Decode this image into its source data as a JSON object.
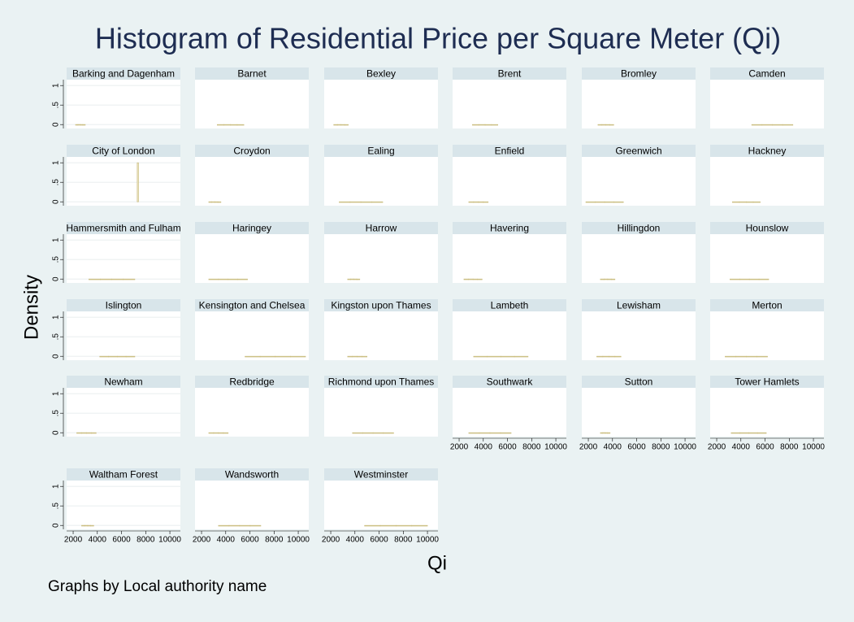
{
  "title": "Histogram of Residential Price per Square Meter (Qi)",
  "x_label": "Qi",
  "y_label": "Density",
  "note": "Graphs by Local authority name",
  "chart_data": [
    {
      "type": "histogram",
      "title": "Barking and Dagenham",
      "color": "#c9bb7c",
      "bins": [
        2200,
        2400,
        2600,
        2800,
        3000
      ],
      "values": [
        0.0012,
        0.0019,
        0.0011,
        0.0008
      ],
      "xlim": [
        1460,
        10870
      ],
      "ylim": [
        -0.1,
        1.15
      ],
      "yticks": [
        0,
        {
          "value": 0.5,
          "label": ".5"
        },
        1
      ]
    },
    {
      "type": "histogram",
      "title": "Barnet",
      "color": "#c9bb7c",
      "bins": [
        3300,
        3850,
        4400,
        4950,
        5500
      ],
      "values": [
        0.0006,
        0.0008,
        0.0003,
        0.0001
      ],
      "xlim": [
        1460,
        10870
      ],
      "ylim": [
        -0.1,
        1.15
      ]
    },
    {
      "type": "histogram",
      "title": "Bexley",
      "color": "#c9bb7c",
      "bins": [
        2250,
        2550,
        2850,
        3150,
        3450
      ],
      "values": [
        0.0009,
        0.0013,
        0.0008,
        0.0003
      ],
      "xlim": [
        1460,
        10870
      ],
      "ylim": [
        -0.1,
        1.15
      ]
    },
    {
      "type": "histogram",
      "title": "Brent",
      "color": "#c9bb7c",
      "bins": [
        3100,
        3625,
        4150,
        4675,
        5200
      ],
      "values": [
        0.0005,
        0.0008,
        0.0004,
        0.0002
      ],
      "xlim": [
        1460,
        10870
      ],
      "ylim": [
        -0.1,
        1.15
      ]
    },
    {
      "type": "histogram",
      "title": "Bromley",
      "color": "#c9bb7c",
      "bins": [
        2800,
        3125,
        3450,
        3775,
        4100
      ],
      "values": [
        0.0008,
        0.0012,
        0.0008,
        0.0003
      ],
      "xlim": [
        1460,
        10870
      ],
      "ylim": [
        -0.1,
        1.15
      ]
    },
    {
      "type": "histogram",
      "title": "Camden",
      "color": "#c9bb7c",
      "bins": [
        4900,
        5750,
        6600,
        7450,
        8300
      ],
      "values": [
        0.0003,
        0.0005,
        0.0003,
        0.0001
      ],
      "xlim": [
        1460,
        10870
      ],
      "ylim": [
        -0.1,
        1.15
      ]
    },
    {
      "type": "histogram",
      "title": "City of London",
      "color": "#c9bb7c",
      "bins": [
        7300,
        7400
      ],
      "values": [
        1
      ],
      "xlim": [
        1460,
        10870
      ],
      "ylim": [
        -0.1,
        1.15
      ],
      "yticks": [
        0,
        {
          "value": 0.5,
          "label": ".5"
        },
        1
      ]
    },
    {
      "type": "histogram",
      "title": "Croydon",
      "color": "#c9bb7c",
      "bins": [
        2600,
        2850,
        3100,
        3350,
        3600
      ],
      "values": [
        0.0012,
        0.0014,
        0.001,
        0.0004
      ],
      "xlim": [
        1460,
        10870
      ],
      "ylim": [
        -0.1,
        1.15
      ]
    },
    {
      "type": "histogram",
      "title": "Ealing",
      "color": "#c9bb7c",
      "bins": [
        2700,
        3600,
        4500,
        5400,
        6300
      ],
      "values": [
        0.0003,
        0.0005,
        0.0002,
        0.0001
      ],
      "xlim": [
        1460,
        10870
      ],
      "ylim": [
        -0.1,
        1.15
      ]
    },
    {
      "type": "histogram",
      "title": "Enfield",
      "color": "#c9bb7c",
      "bins": [
        2800,
        3200,
        3600,
        4000,
        4400
      ],
      "values": [
        0.0007,
        0.0009,
        0.0006,
        0.0003
      ],
      "xlim": [
        1460,
        10870
      ],
      "ylim": [
        -0.1,
        1.15
      ]
    },
    {
      "type": "histogram",
      "title": "Greenwich",
      "color": "#c9bb7c",
      "bins": [
        1800,
        2575,
        3350,
        4125,
        4900
      ],
      "values": [
        0.0002,
        0.0005,
        0.0004,
        0.0002
      ],
      "xlim": [
        1460,
        10870
      ],
      "ylim": [
        -0.1,
        1.15
      ]
    },
    {
      "type": "histogram",
      "title": "Hackney",
      "color": "#c9bb7c",
      "bins": [
        3300,
        3875,
        4450,
        5025,
        5600
      ],
      "values": [
        0.0005,
        0.0007,
        0.0003,
        0.0002
      ],
      "xlim": [
        1460,
        10870
      ],
      "ylim": [
        -0.1,
        1.15
      ]
    },
    {
      "type": "histogram",
      "title": "Hammersmith and Fulham",
      "color": "#c9bb7c",
      "bins": [
        3300,
        4250,
        5200,
        6150,
        7100
      ],
      "values": [
        0.0001,
        0.0003,
        0.0004,
        0.0003
      ],
      "xlim": [
        1460,
        10870
      ],
      "ylim": [
        -0.1,
        1.15
      ],
      "yticks": [
        0,
        {
          "value": 0.5,
          "label": ".5"
        },
        1
      ]
    },
    {
      "type": "histogram",
      "title": "Haringey",
      "color": "#c9bb7c",
      "bins": [
        2600,
        3400,
        4200,
        5000,
        5800
      ],
      "values": [
        0.0004,
        0.0005,
        0.0002,
        0.0001
      ],
      "xlim": [
        1460,
        10870
      ],
      "ylim": [
        -0.1,
        1.15
      ]
    },
    {
      "type": "histogram",
      "title": "Harrow",
      "color": "#c9bb7c",
      "bins": [
        3400,
        3650,
        3900,
        4150,
        4400
      ],
      "values": [
        0.0009,
        0.0016,
        0.0011,
        0.0004
      ],
      "xlim": [
        1460,
        10870
      ],
      "ylim": [
        -0.1,
        1.15
      ]
    },
    {
      "type": "histogram",
      "title": "Havering",
      "color": "#c9bb7c",
      "bins": [
        2400,
        2775,
        3150,
        3525,
        3900
      ],
      "values": [
        0.0009,
        0.0011,
        0.0005,
        0.0002
      ],
      "xlim": [
        1460,
        10870
      ],
      "ylim": [
        -0.1,
        1.15
      ]
    },
    {
      "type": "histogram",
      "title": "Hillingdon",
      "color": "#c9bb7c",
      "bins": [
        3000,
        3300,
        3600,
        3900,
        4200
      ],
      "values": [
        0.0007,
        0.0013,
        0.001,
        0.0003
      ],
      "xlim": [
        1460,
        10870
      ],
      "ylim": [
        -0.1,
        1.15
      ]
    },
    {
      "type": "histogram",
      "title": "Hounslow",
      "color": "#c9bb7c",
      "bins": [
        3100,
        3900,
        4700,
        5500,
        6300
      ],
      "values": [
        0.0004,
        0.0005,
        0.0002,
        0.0001
      ],
      "xlim": [
        1460,
        10870
      ],
      "ylim": [
        -0.1,
        1.15
      ]
    },
    {
      "type": "histogram",
      "title": "Islington",
      "color": "#c9bb7c",
      "bins": [
        4200,
        4925,
        5650,
        6375,
        7100
      ],
      "values": [
        0.0003,
        0.0005,
        0.0004,
        0.0002
      ],
      "xlim": [
        1460,
        10870
      ],
      "ylim": [
        -0.1,
        1.15
      ],
      "yticks": [
        0,
        {
          "value": 0.5,
          "label": ".5"
        },
        1
      ]
    },
    {
      "type": "histogram",
      "title": "Kensington and Chelsea",
      "color": "#c9bb7c",
      "bins": [
        5600,
        6850,
        8100,
        9350,
        10600
      ],
      "values": [
        0.0001,
        0.0003,
        0.0003,
        0.0001
      ],
      "xlim": [
        1460,
        10870
      ],
      "ylim": [
        -0.1,
        1.15
      ]
    },
    {
      "type": "histogram",
      "title": "Kingston upon Thames",
      "color": "#c9bb7c",
      "bins": [
        3400,
        3800,
        4200,
        4600,
        5000
      ],
      "values": [
        0.0006,
        0.001,
        0.0006,
        0.0003
      ],
      "xlim": [
        1460,
        10870
      ],
      "ylim": [
        -0.1,
        1.15
      ]
    },
    {
      "type": "histogram",
      "title": "Lambeth",
      "color": "#c9bb7c",
      "bins": [
        3200,
        4325,
        5450,
        6575,
        7700
      ],
      "values": [
        0.0003,
        0.0004,
        0.0001,
        0.0001
      ],
      "xlim": [
        1460,
        10870
      ],
      "ylim": [
        -0.1,
        1.15
      ]
    },
    {
      "type": "histogram",
      "title": "Lewisham",
      "color": "#c9bb7c",
      "bins": [
        2700,
        3200,
        3700,
        4200,
        4700
      ],
      "values": [
        0.0005,
        0.0008,
        0.0005,
        0.0002
      ],
      "xlim": [
        1460,
        10870
      ],
      "ylim": [
        -0.1,
        1.15
      ]
    },
    {
      "type": "histogram",
      "title": "Merton",
      "color": "#c9bb7c",
      "bins": [
        2700,
        3575,
        4450,
        5325,
        6200
      ],
      "values": [
        0.0002,
        0.0005,
        0.0003,
        0.0001
      ],
      "xlim": [
        1460,
        10870
      ],
      "ylim": [
        -0.1,
        1.15
      ]
    },
    {
      "type": "histogram",
      "title": "Newham",
      "color": "#c9bb7c",
      "bins": [
        2300,
        2700,
        3100,
        3500,
        3900
      ],
      "values": [
        0.0007,
        0.0009,
        0.0006,
        0.0003
      ],
      "xlim": [
        1460,
        10870
      ],
      "ylim": [
        -0.1,
        1.15
      ],
      "yticks": [
        0,
        {
          "value": 0.5,
          "label": ".5"
        },
        1
      ]
    },
    {
      "type": "histogram",
      "title": "Redbridge",
      "color": "#c9bb7c",
      "bins": [
        2600,
        3000,
        3400,
        3800,
        4200
      ],
      "values": [
        0.0007,
        0.001,
        0.0005,
        0.0002
      ],
      "xlim": [
        1460,
        10870
      ],
      "ylim": [
        -0.1,
        1.15
      ]
    },
    {
      "type": "histogram",
      "title": "Richmond upon Thames",
      "color": "#c9bb7c",
      "bins": [
        3800,
        4650,
        5500,
        6350,
        7200
      ],
      "values": [
        0.0003,
        0.0004,
        0.0003,
        0.0002
      ],
      "xlim": [
        1460,
        10870
      ],
      "ylim": [
        -0.1,
        1.15
      ]
    },
    {
      "type": "histogram",
      "title": "Southwark",
      "color": "#c9bb7c",
      "bins": [
        2800,
        3675,
        4550,
        5425,
        6300
      ],
      "values": [
        0.0002,
        0.0005,
        0.0003,
        0.0001
      ],
      "xlim": [
        1460,
        10870
      ],
      "ylim": [
        -0.1,
        1.15
      ],
      "xticks": [
        2000,
        4000,
        6000,
        8000,
        10000
      ]
    },
    {
      "type": "histogram",
      "title": "Sutton",
      "color": "#c9bb7c",
      "bins": [
        3000,
        3200,
        3400,
        3600,
        3800
      ],
      "values": [
        0.001,
        0.0019,
        0.0014,
        0.0007
      ],
      "xlim": [
        1460,
        10870
      ],
      "ylim": [
        -0.1,
        1.15
      ],
      "xticks": [
        2000,
        4000,
        6000,
        8000,
        10000
      ]
    },
    {
      "type": "histogram",
      "title": "Tower Hamlets",
      "color": "#c9bb7c",
      "bins": [
        3200,
        3925,
        4650,
        5375,
        6100
      ],
      "values": [
        0.0003,
        0.0006,
        0.0004,
        0.0001
      ],
      "xlim": [
        1460,
        10870
      ],
      "ylim": [
        -0.1,
        1.15
      ],
      "xticks": [
        2000,
        4000,
        6000,
        8000,
        10000
      ]
    },
    {
      "type": "histogram",
      "title": "Waltham Forest",
      "color": "#c9bb7c",
      "bins": [
        2700,
        2950,
        3200,
        3450,
        3700
      ],
      "values": [
        0.001,
        0.0015,
        0.0011,
        0.0004
      ],
      "xlim": [
        1460,
        10870
      ],
      "ylim": [
        -0.1,
        1.15
      ],
      "yticks": [
        0,
        {
          "value": 0.5,
          "label": ".5"
        },
        1
      ],
      "xticks": [
        2000,
        4000,
        6000,
        8000,
        10000
      ]
    },
    {
      "type": "histogram",
      "title": "Wandsworth",
      "color": "#c9bb7c",
      "bins": [
        3400,
        4275,
        5150,
        6025,
        6900
      ],
      "values": [
        0.0002,
        0.0005,
        0.0003,
        0.0001
      ],
      "xlim": [
        1460,
        10870
      ],
      "ylim": [
        -0.1,
        1.15
      ],
      "xticks": [
        2000,
        4000,
        6000,
        8000,
        10000
      ]
    },
    {
      "type": "histogram",
      "title": "Westminster",
      "color": "#c9bb7c",
      "bins": [
        4800,
        6100,
        7400,
        8700,
        10000
      ],
      "values": [
        0.0001,
        0.0003,
        0.0003,
        0.0001
      ],
      "xlim": [
        1460,
        10870
      ],
      "ylim": [
        -0.1,
        1.15
      ],
      "xticks": [
        2000,
        4000,
        6000,
        8000,
        10000
      ]
    }
  ]
}
